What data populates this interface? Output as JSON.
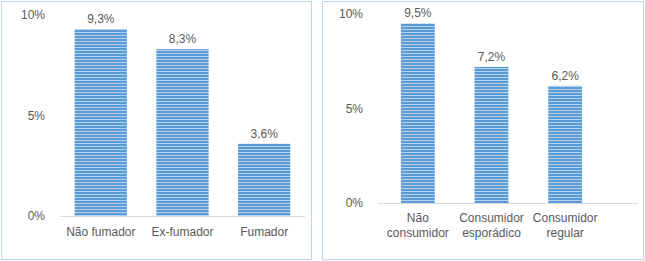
{
  "chart_data": [
    {
      "type": "bar",
      "categories": [
        "Não fumador",
        "Ex-fumador",
        "Fumador"
      ],
      "values": [
        9.3,
        8.3,
        3.6
      ],
      "value_labels": [
        "9,3%",
        "8,3%",
        "3,6%"
      ],
      "color": "#5b9bd5",
      "ylim": [
        0,
        10
      ],
      "yticks": [
        {
          "value": 0,
          "label": "0%"
        },
        {
          "value": 5,
          "label": "5%"
        },
        {
          "value": 10,
          "label": "10%"
        }
      ],
      "grid": false,
      "data_labels": true
    },
    {
      "type": "bar",
      "categories": [
        "Não consumidor",
        "Consumidor esporádico",
        "Consumidor regular"
      ],
      "values": [
        9.5,
        7.2,
        6.2
      ],
      "value_labels": [
        "9,5%",
        "7,2%",
        "6,2%"
      ],
      "color": "#5b9bd5",
      "ylim": [
        0,
        10
      ],
      "yticks": [
        {
          "value": 0,
          "label": "0%"
        },
        {
          "value": 5,
          "label": "5%"
        },
        {
          "value": 10,
          "label": "10%"
        }
      ],
      "grid": false,
      "data_labels": true
    }
  ]
}
